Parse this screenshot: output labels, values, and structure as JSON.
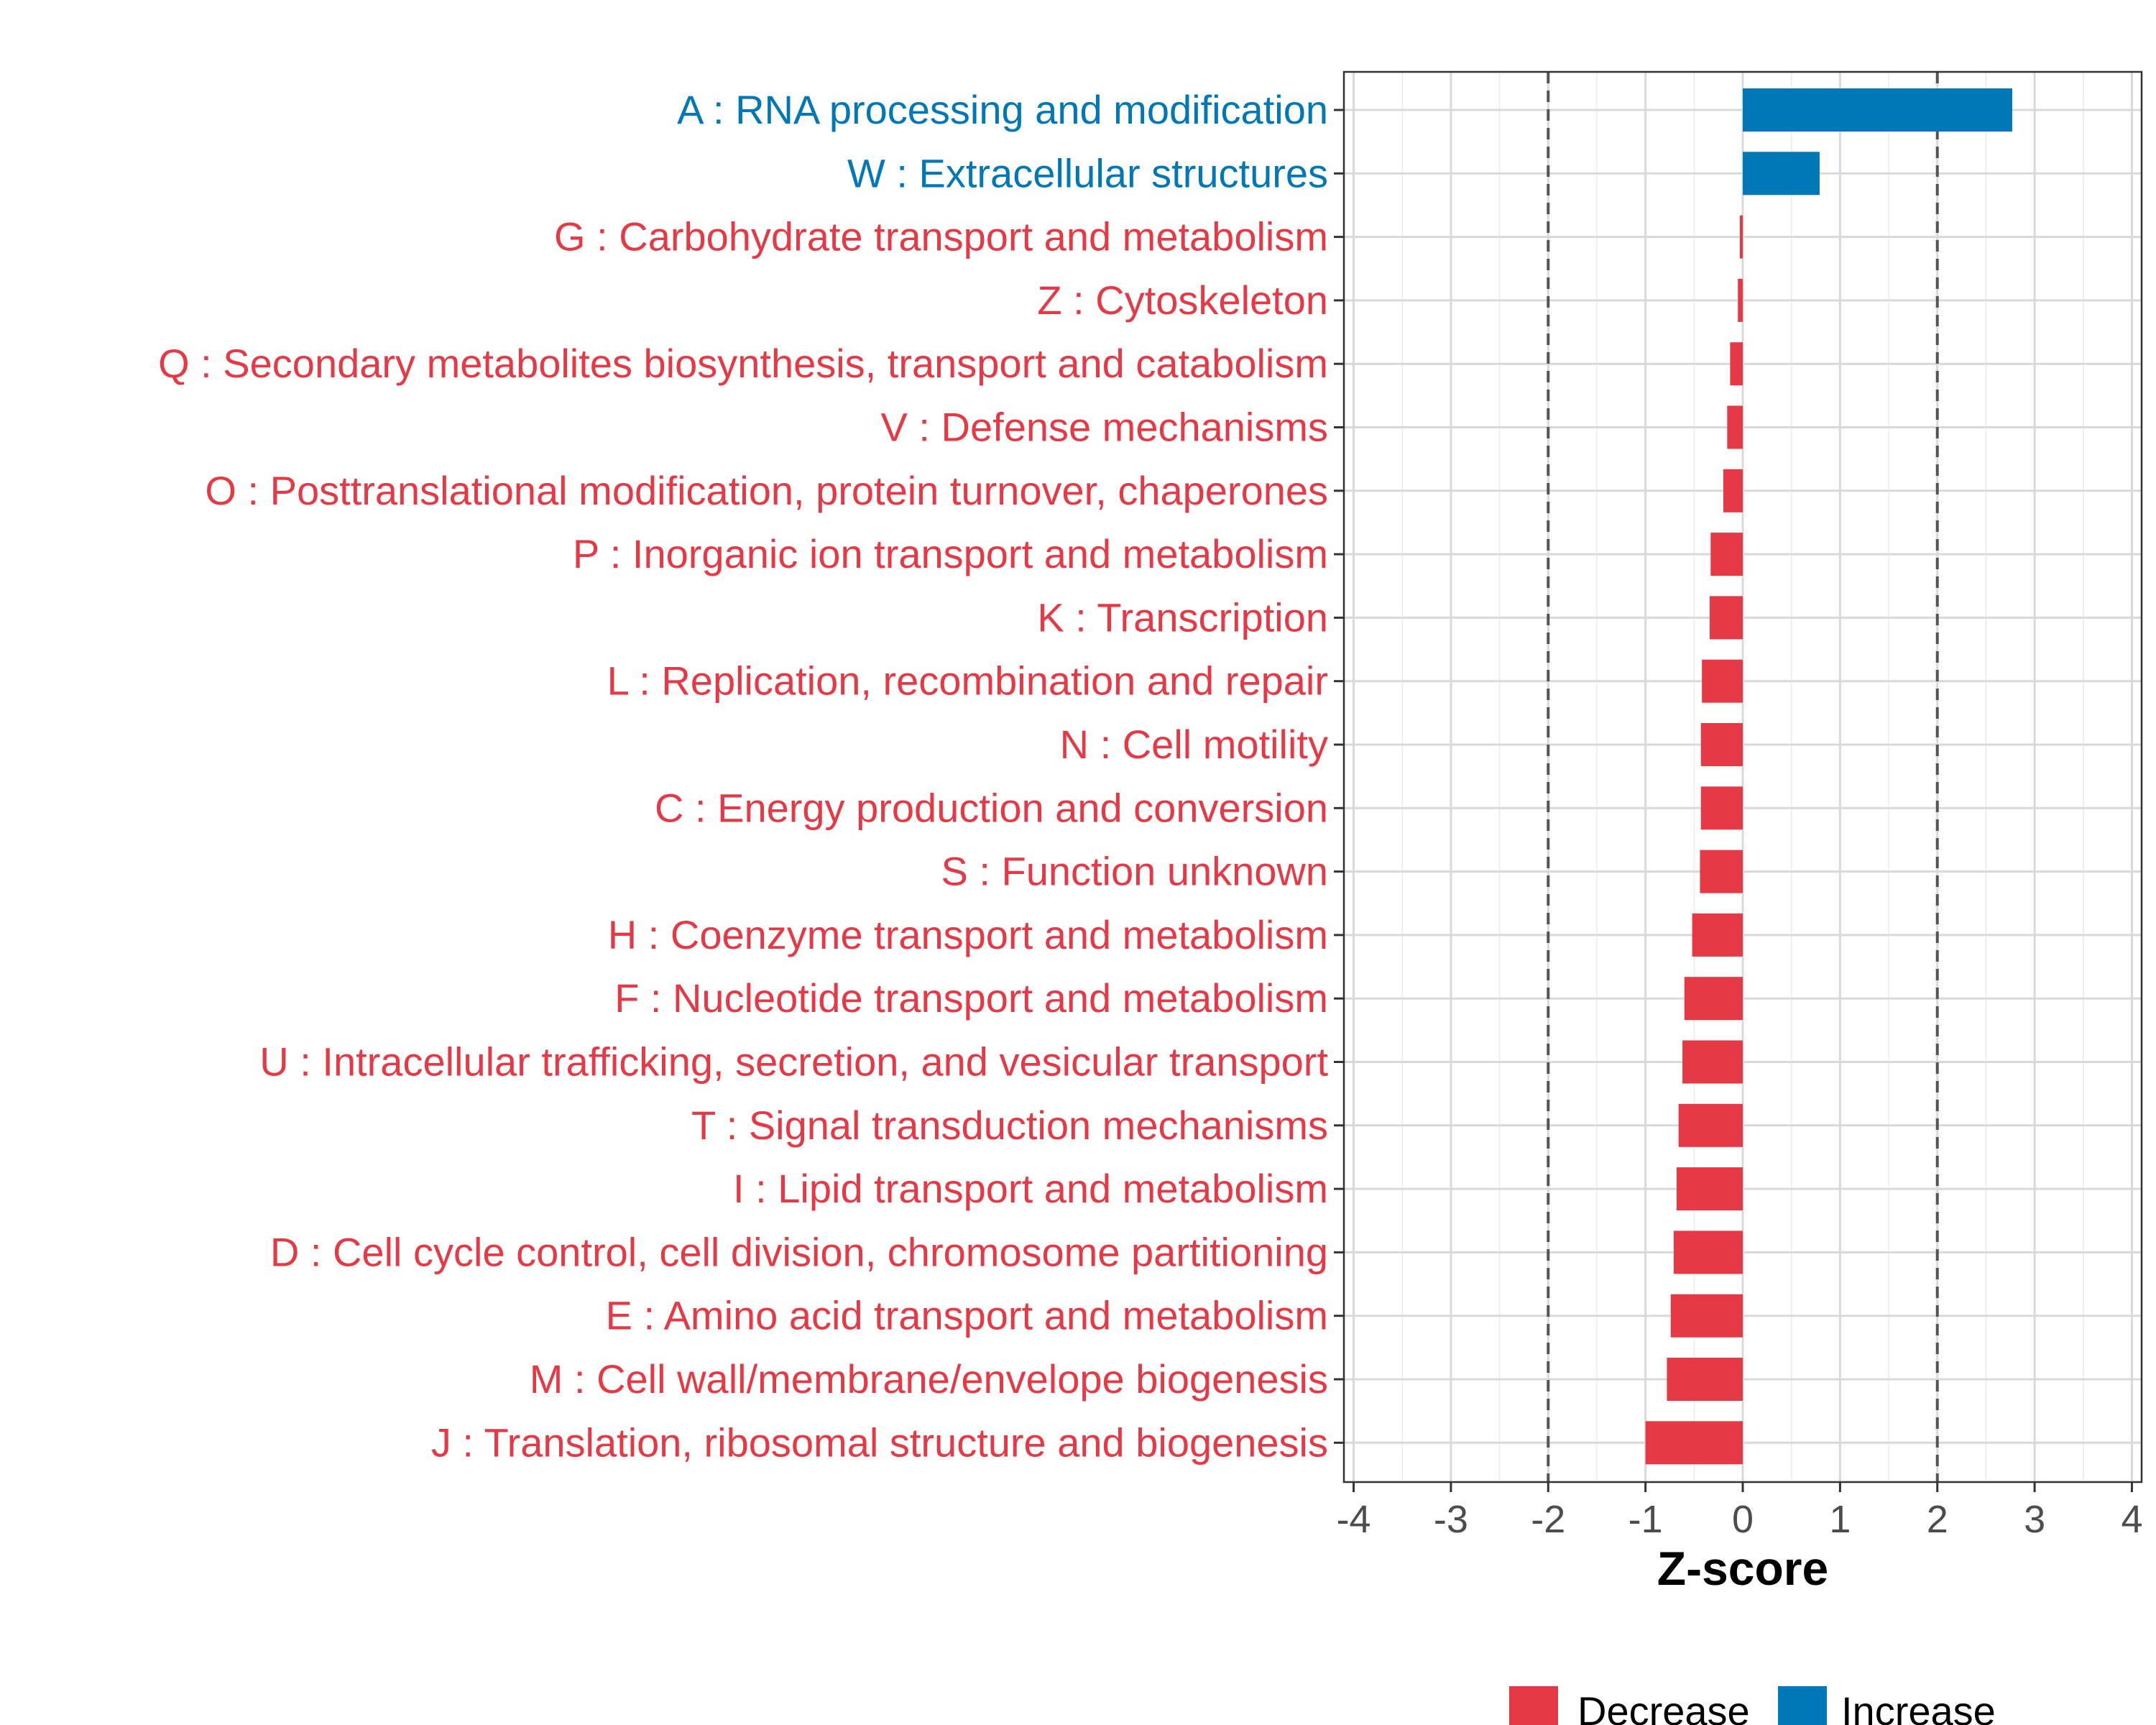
{
  "chart_data": {
    "type": "bar",
    "orientation": "horizontal",
    "title": "",
    "xlabel": "Z-score",
    "ylabel": "",
    "xlim": [
      -4.1,
      4.1
    ],
    "xticks": [
      -4,
      -3,
      -2,
      -1,
      0,
      1,
      2,
      3,
      4
    ],
    "xtick_labels": [
      "-4",
      "-3",
      "-2",
      "-1",
      "0",
      "1",
      "2",
      "3",
      "4"
    ],
    "reference_lines": [
      -2,
      2
    ],
    "grid": true,
    "legend_position": "bottom",
    "colors": {
      "Decrease": "#E63946",
      "Increase": "#0077B6"
    },
    "legend": [
      {
        "key": "Decrease",
        "label": "Decrease"
      },
      {
        "key": "Increase",
        "label": "Increase"
      }
    ],
    "categories": [
      "A : RNA processing and modification",
      "W : Extracellular structures",
      "G : Carbohydrate transport and metabolism",
      "Z : Cytoskeleton",
      "Q : Secondary metabolites biosynthesis, transport and catabolism",
      "V : Defense mechanisms",
      "O : Posttranslational modification, protein turnover, chaperones",
      "P : Inorganic ion transport and metabolism",
      "K : Transcription",
      "L : Replication, recombination and repair",
      "N : Cell motility",
      "C : Energy production and conversion",
      "S : Function unknown",
      "H : Coenzyme transport and metabolism",
      "F : Nucleotide transport and metabolism",
      "U : Intracellular trafficking, secretion, and vesicular transport",
      "T : Signal transduction mechanisms",
      "I : Lipid transport and metabolism",
      "D : Cell cycle control, cell division, chromosome partitioning",
      "E : Amino acid transport and metabolism",
      "M : Cell wall/membrane/envelope biogenesis",
      "J : Translation, ribosomal structure and biogenesis"
    ],
    "values": [
      2.77,
      0.79,
      -0.03,
      -0.05,
      -0.13,
      -0.16,
      -0.2,
      -0.33,
      -0.34,
      -0.42,
      -0.43,
      -0.43,
      -0.44,
      -0.52,
      -0.6,
      -0.62,
      -0.66,
      -0.68,
      -0.71,
      -0.74,
      -0.78,
      -1.0
    ],
    "groups": [
      "Increase",
      "Increase",
      "Decrease",
      "Decrease",
      "Decrease",
      "Decrease",
      "Decrease",
      "Decrease",
      "Decrease",
      "Decrease",
      "Decrease",
      "Decrease",
      "Decrease",
      "Decrease",
      "Decrease",
      "Decrease",
      "Decrease",
      "Decrease",
      "Decrease",
      "Decrease",
      "Decrease",
      "Decrease"
    ]
  }
}
